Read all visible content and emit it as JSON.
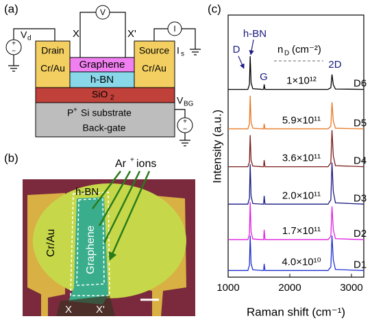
{
  "panel_a": {
    "label": "(a)",
    "vd": {
      "main": "V",
      "sub": "d"
    },
    "probe_left": "X",
    "voltmeter": "V",
    "probe_right": "X'",
    "ammeter": "I",
    "is": {
      "main": "I",
      "sub": "s"
    },
    "drain": "Drain",
    "drain_metal": "Cr/Au",
    "graphene": "Graphene",
    "hbn": "h-BN",
    "source": "Source",
    "source_metal": "Cr/Au",
    "sio2": {
      "main": "SiO",
      "sub": "2"
    },
    "substrate": {
      "main": "P",
      "sup": "+",
      "rest": "Si substrate"
    },
    "backgate": "Back-gate",
    "vbg": {
      "main": "V",
      "sub": "BG"
    }
  },
  "panel_b": {
    "label": "(b)",
    "ions": {
      "main": "Ar",
      "sup": "+",
      "rest": "ions"
    },
    "hbn": "h-BN",
    "metal": "Cr/Au",
    "graphene": "Graphene",
    "x_left": "X",
    "x_right": "X'"
  },
  "chart_data": {
    "type": "line",
    "panel_label": "(c)",
    "xlabel": "Raman shift (cm⁻¹)",
    "ylabel": "Intensity (a.u.)",
    "xlim": [
      1000,
      3200
    ],
    "xticks": [
      1000,
      2000,
      3000
    ],
    "ylim": [
      0,
      7.9
    ],
    "annotations": {
      "hbn": "h-BN",
      "d": "D",
      "g": "G",
      "two_d": "2D",
      "nd": {
        "main": "n",
        "sub": "D",
        "unit": "(cm⁻²)"
      }
    },
    "x": [
      1000,
      1320,
      1345,
      1358,
      1372,
      1400,
      1550,
      1575,
      1585,
      1598,
      1700,
      2620,
      2665,
      2685,
      2705,
      2740,
      3200
    ],
    "series": [
      {
        "name": "D1",
        "color": "#1f2fd0",
        "density": "4.0×10¹⁰",
        "values": [
          0.2,
          0.2,
          0.36,
          1.25,
          0.41,
          0.22,
          0.2,
          0.2,
          0.4,
          0.2,
          0.2,
          0.2,
          0.31,
          1.25,
          0.52,
          0.23,
          0.2
        ]
      },
      {
        "name": "D2",
        "color": "#e020e0",
        "density": "1.7×10¹¹",
        "values": [
          1.13,
          1.13,
          1.3,
          2.26,
          1.36,
          1.15,
          1.13,
          1.13,
          1.43,
          1.13,
          1.13,
          1.13,
          1.23,
          2.13,
          1.43,
          1.16,
          1.13
        ]
      },
      {
        "name": "D3",
        "color": "#1a1a80",
        "density": "2.0×10¹¹",
        "values": [
          2.2,
          2.2,
          2.38,
          3.4,
          2.44,
          2.22,
          2.2,
          2.2,
          2.45,
          2.2,
          2.2,
          2.2,
          2.33,
          3.45,
          2.58,
          2.24,
          2.2
        ]
      },
      {
        "name": "D4",
        "color": "#7a1a1a",
        "density": "3.6×10¹¹",
        "values": [
          3.33,
          3.33,
          3.47,
          4.28,
          3.52,
          3.35,
          3.33,
          3.33,
          3.53,
          3.33,
          3.33,
          3.33,
          3.44,
          4.43,
          3.66,
          3.36,
          3.33
        ]
      },
      {
        "name": "D5",
        "color": "#e87722",
        "density": "5.9×10¹¹",
        "values": [
          4.47,
          4.47,
          4.62,
          5.47,
          4.67,
          4.49,
          4.47,
          4.47,
          4.62,
          4.47,
          4.47,
          4.47,
          4.55,
          5.27,
          4.71,
          4.49,
          4.47
        ]
      },
      {
        "name": "D6",
        "color": "#000000",
        "density": "1×10¹²",
        "values": [
          5.66,
          5.66,
          5.81,
          6.66,
          5.86,
          5.68,
          5.66,
          5.66,
          5.81,
          5.66,
          5.66,
          5.66,
          5.71,
          6.11,
          5.8,
          5.67,
          5.66
        ]
      }
    ]
  }
}
